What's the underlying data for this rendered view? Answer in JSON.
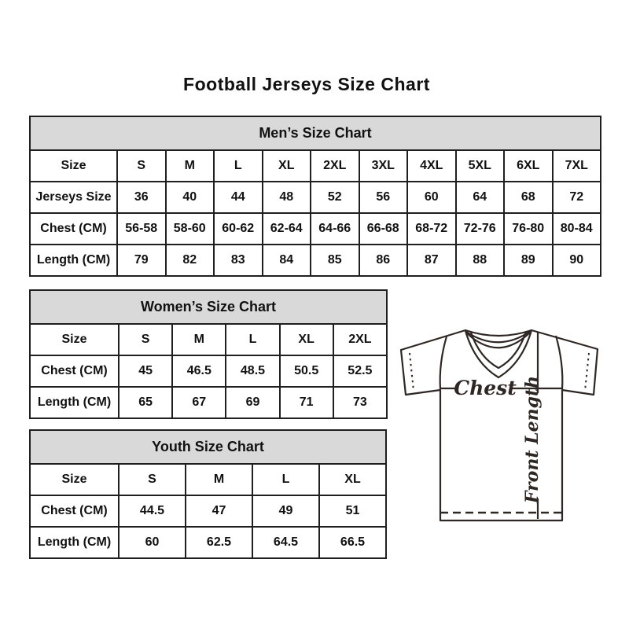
{
  "title": "Football Jerseys Size Chart",
  "tables": [
    {
      "id": "mens",
      "title": "Men’s Size Chart",
      "rows": [
        [
          "Size",
          "S",
          "M",
          "L",
          "XL",
          "2XL",
          "3XL",
          "4XL",
          "5XL",
          "6XL",
          "7XL"
        ],
        [
          "Jerseys Size",
          "36",
          "40",
          "44",
          "48",
          "52",
          "56",
          "60",
          "64",
          "68",
          "72"
        ],
        [
          "Chest (CM)",
          "56-58",
          "58-60",
          "60-62",
          "62-64",
          "64-66",
          "66-68",
          "68-72",
          "72-76",
          "76-80",
          "80-84"
        ],
        [
          "Length (CM)",
          "79",
          "82",
          "83",
          "84",
          "85",
          "86",
          "87",
          "88",
          "89",
          "90"
        ]
      ]
    },
    {
      "id": "womens",
      "title": "Women’s Size Chart",
      "rows": [
        [
          "Size",
          "S",
          "M",
          "L",
          "XL",
          "2XL"
        ],
        [
          "Chest (CM)",
          "45",
          "46.5",
          "48.5",
          "50.5",
          "52.5"
        ],
        [
          "Length (CM)",
          "65",
          "67",
          "69",
          "71",
          "73"
        ]
      ]
    },
    {
      "id": "youth",
      "title": "Youth Size Chart",
      "rows": [
        [
          "Size",
          "S",
          "M",
          "L",
          "XL"
        ],
        [
          "Chest (CM)",
          "44.5",
          "47",
          "49",
          "51"
        ],
        [
          "Length (CM)",
          "60",
          "62.5",
          "64.5",
          "66.5"
        ]
      ]
    }
  ],
  "diagram": {
    "chest_label": "Chest",
    "front_length_label": "Front Length"
  },
  "colors": {
    "table_header_bg": "#d9d9d9",
    "table_border": "#1f1f1f",
    "jersey_line": "#2e2724",
    "text": "#111111",
    "background": "#ffffff"
  }
}
